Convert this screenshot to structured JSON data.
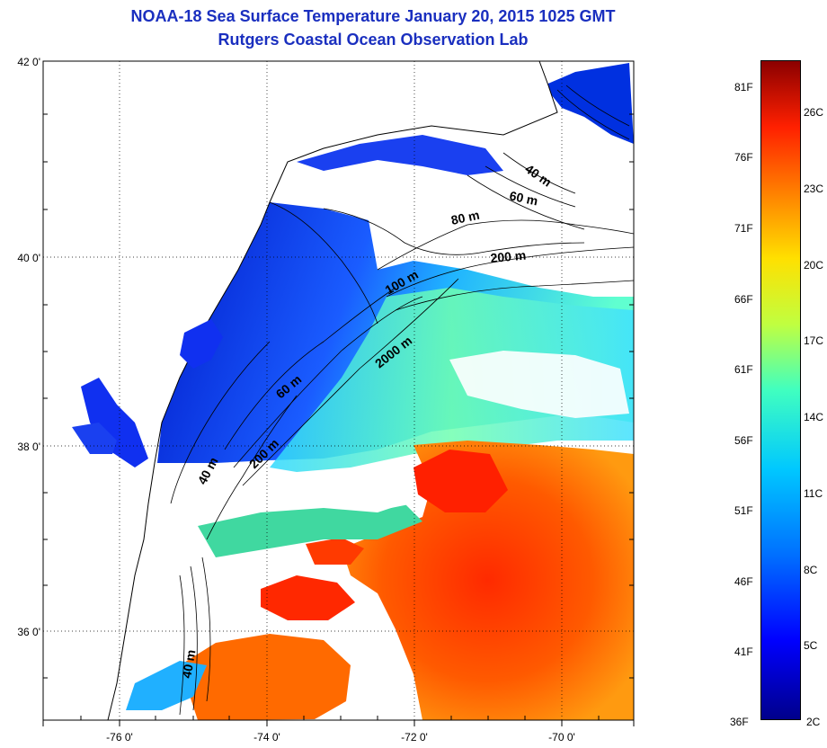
{
  "title_line1": "NOAA-18 Sea Surface Temperature January 20, 2015 1025 GMT",
  "title_line2": "Rutgers Coastal Ocean Observation Lab",
  "lat_labels": [
    "42 0'",
    "40 0'",
    "38 0'",
    "36 0'"
  ],
  "lon_labels": [
    "-76 0'",
    "-74 0'",
    "-72 0'",
    "-70 0'"
  ],
  "isobath_labels": {
    "l40_north": "40 m",
    "l60_north": "60 m",
    "l80": "80 m",
    "l200_north": "200 m",
    "l100": "100 m",
    "l2000": "2000 m",
    "l60_mid": "60 m",
    "l200_mid": "200 m",
    "l40_mid": "40 m",
    "l40_south": "40 m"
  },
  "colorbar": {
    "fahrenheit": [
      "81F",
      "76F",
      "71F",
      "66F",
      "61F",
      "56F",
      "51F",
      "46F",
      "41F",
      "36F"
    ],
    "celsius": [
      "26C",
      "23C",
      "20C",
      "17C",
      "14C",
      "11C",
      "8C",
      "5C",
      "2C"
    ]
  },
  "colors": {
    "title": "#1a2fbf",
    "cold": "#0000ff",
    "warm": "#ff2000"
  }
}
